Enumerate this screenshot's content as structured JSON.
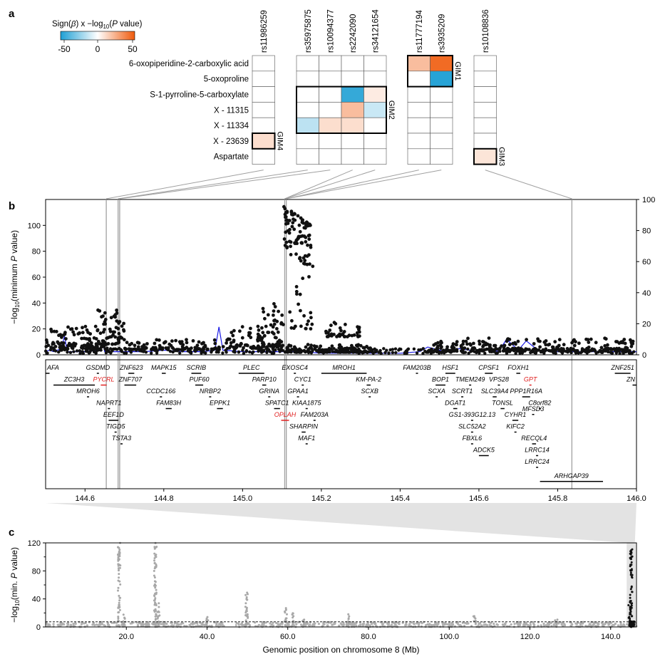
{
  "panels": {
    "a": "a",
    "b": "b",
    "c": "c"
  },
  "colors": {
    "neg": "#1e9fd4",
    "pos": "#ef5a0c",
    "line": "#1a1ae6",
    "gene_hit": "#e02020",
    "dot": "#111111",
    "grey": "#a0a0a0"
  },
  "chart_data": [
    {
      "type": "heatmap",
      "id": "panel-a",
      "colorbar": {
        "title_prefix": "Sign(",
        "beta": "β",
        "title_mid": ") x −log",
        "sub": "10",
        "title_open": "(",
        "p_ital": "P",
        "title_end": " value)",
        "ticks": [
          "-50",
          "0",
          "50"
        ],
        "range": [
          -50,
          50
        ]
      },
      "rows": [
        "6-oxopiperidine-2-carboxylic acid",
        "5-oxoproline",
        "S-1-pyrroline-5-carboxylate",
        "X - 11315",
        "X - 11334",
        "X - 23639",
        "Aspartate"
      ],
      "snp_groups": [
        {
          "snps": [
            "rs11986259"
          ]
        },
        {
          "snps": [
            "rs35975875",
            "rs10094377",
            "rs2242090",
            "rs34121654"
          ]
        },
        {
          "snps": [
            "rs11777194",
            "rs3935209"
          ]
        },
        {
          "snps": [
            "rs10108836"
          ]
        }
      ],
      "cells": [
        {
          "row": 0,
          "group": 2,
          "col": 0,
          "value": 20
        },
        {
          "row": 0,
          "group": 2,
          "col": 1,
          "value": 45
        },
        {
          "row": 1,
          "group": 2,
          "col": 1,
          "value": -48
        },
        {
          "row": 2,
          "group": 1,
          "col": 2,
          "value": -45
        },
        {
          "row": 2,
          "group": 1,
          "col": 3,
          "value": 6
        },
        {
          "row": 3,
          "group": 1,
          "col": 2,
          "value": 20
        },
        {
          "row": 3,
          "group": 1,
          "col": 3,
          "value": -12
        },
        {
          "row": 4,
          "group": 1,
          "col": 0,
          "value": -15
        },
        {
          "row": 4,
          "group": 1,
          "col": 1,
          "value": 10
        },
        {
          "row": 4,
          "group": 1,
          "col": 2,
          "value": 10
        },
        {
          "row": 5,
          "group": 0,
          "col": 0,
          "value": 10
        },
        {
          "row": 6,
          "group": 3,
          "col": 0,
          "value": 8
        }
      ],
      "gims": [
        {
          "label": "GIM1",
          "group": 2,
          "row_start": 0,
          "row_end": 1,
          "col_start": 0,
          "col_end": 1
        },
        {
          "label": "GIM2",
          "group": 1,
          "row_start": 2,
          "row_end": 4,
          "col_start": 0,
          "col_end": 3
        },
        {
          "label": "GIM3",
          "group": 3,
          "row_start": 6,
          "row_end": 6,
          "col_start": 0,
          "col_end": 0
        },
        {
          "label": "GIM4",
          "group": 0,
          "row_start": 5,
          "row_end": 5,
          "col_start": 0,
          "col_end": 0
        }
      ]
    },
    {
      "type": "scatter",
      "id": "panel-b",
      "xlabel": "Genomic position on chromosome 8 (Mb)",
      "ylabel_left": {
        "pre": "−log",
        "sub": "10",
        "post": "(minimum ",
        "p": "P",
        "end": " value)"
      },
      "xlim": [
        144.5,
        146.0
      ],
      "ylim_left": [
        0,
        120
      ],
      "ylim_right": [
        0,
        100
      ],
      "xticks": [
        "144.6",
        "144.8",
        "145.0",
        "145.2",
        "145.4",
        "145.6",
        "145.8",
        "146.0"
      ],
      "yticks_left": [
        "0",
        "20",
        "40",
        "60",
        "80",
        "100"
      ],
      "yticks_right": [
        "0",
        "20",
        "40",
        "60",
        "80",
        "100"
      ],
      "highlight_positions_mb": [
        144.654,
        144.684,
        144.688,
        145.107,
        145.111,
        145.836
      ],
      "dot_clusters": [
        {
          "from": 144.5,
          "to": 144.66,
          "base": 5,
          "peak": 22,
          "n": 110
        },
        {
          "from": 144.63,
          "to": 144.7,
          "base": 8,
          "peak": 35,
          "n": 60
        },
        {
          "from": 144.7,
          "to": 144.95,
          "base": 4,
          "peak": 12,
          "n": 100
        },
        {
          "from": 144.95,
          "to": 145.05,
          "base": 5,
          "peak": 22,
          "n": 60
        },
        {
          "from": 145.05,
          "to": 145.105,
          "base": 6,
          "peak": 42,
          "n": 60
        },
        {
          "from": 145.105,
          "to": 145.175,
          "base": 80,
          "peak": 115,
          "n": 90
        },
        {
          "from": 145.12,
          "to": 145.18,
          "base": 20,
          "peak": 75,
          "n": 25
        },
        {
          "from": 145.21,
          "to": 145.3,
          "base": 14,
          "peak": 26,
          "n": 40
        },
        {
          "from": 145.105,
          "to": 145.33,
          "base": 2,
          "peak": 8,
          "n": 120
        },
        {
          "from": 145.47,
          "to": 145.56,
          "base": 2,
          "peak": 12,
          "n": 50
        },
        {
          "from": 145.55,
          "to": 146.0,
          "base": 3,
          "peak": 13,
          "n": 180
        }
      ],
      "blue_line": {
        "x": [
          144.5,
          144.51,
          144.52,
          144.54,
          144.548,
          144.555,
          144.6,
          144.64,
          144.645,
          144.65,
          144.7,
          144.75,
          144.8,
          144.85,
          144.9,
          144.93,
          144.94,
          144.95,
          145.0,
          145.05,
          145.1,
          145.15,
          145.2,
          145.25,
          145.3,
          145.35,
          145.4,
          145.45,
          145.47,
          145.5,
          145.52,
          145.55,
          145.6,
          145.62,
          145.65,
          145.67,
          145.7,
          145.72,
          145.75,
          145.8,
          145.85,
          145.9,
          145.95,
          146.0
        ],
        "y": [
          2,
          3,
          2,
          4,
          12,
          2,
          2,
          3,
          8,
          2,
          2,
          2,
          3,
          2,
          2,
          3,
          18,
          3,
          2,
          2,
          2,
          2,
          1,
          1,
          1,
          1,
          1,
          2,
          5,
          3,
          2,
          4,
          2,
          4,
          2,
          10,
          3,
          9,
          3,
          2,
          2,
          2,
          2,
          2
        ]
      },
      "genes": [
        {
          "name": "AFA",
          "s": 144.5,
          "e": 144.51,
          "row": 0,
          "anchor": "start"
        },
        {
          "name": "GSDMD",
          "s": 144.63,
          "e": 144.635,
          "row": 0
        },
        {
          "name": "ZNF623",
          "s": 144.71,
          "e": 144.725,
          "row": 0
        },
        {
          "name": "MAPK15",
          "s": 144.795,
          "e": 144.805,
          "row": 0
        },
        {
          "name": "SCRIB",
          "s": 144.87,
          "e": 144.895,
          "row": 0
        },
        {
          "name": "PLEC",
          "s": 144.99,
          "e": 145.055,
          "row": 0
        },
        {
          "name": "EXOSC4",
          "s": 145.13,
          "e": 145.135,
          "row": 0
        },
        {
          "name": "MROH1",
          "s": 145.2,
          "e": 145.315,
          "row": 0
        },
        {
          "name": "FAM203B",
          "s": 145.44,
          "e": 145.445,
          "row": 0
        },
        {
          "name": "HSF1",
          "s": 145.515,
          "e": 145.54,
          "row": 0
        },
        {
          "name": "CPSF1",
          "s": 145.615,
          "e": 145.635,
          "row": 0
        },
        {
          "name": "FOXH1",
          "s": 145.695,
          "e": 145.705,
          "row": 0
        },
        {
          "name": "ZNF251",
          "s": 145.945,
          "e": 145.985,
          "row": 0
        },
        {
          "name": "ZC3H3",
          "s": 144.52,
          "e": 144.625,
          "row": 1
        },
        {
          "name": "PYCRL",
          "s": 144.64,
          "e": 144.655,
          "row": 1,
          "hit": true
        },
        {
          "name": "ZNF707",
          "s": 144.7,
          "e": 144.73,
          "row": 1
        },
        {
          "name": "PUF60",
          "s": 144.88,
          "e": 144.9,
          "row": 1
        },
        {
          "name": "PARP10",
          "s": 145.05,
          "e": 145.06,
          "row": 1
        },
        {
          "name": "CYC1",
          "s": 145.15,
          "e": 145.152,
          "row": 1
        },
        {
          "name": "KM-PA-2",
          "s": 145.315,
          "e": 145.325,
          "row": 1
        },
        {
          "name": "BOP1",
          "s": 145.49,
          "e": 145.515,
          "row": 1
        },
        {
          "name": "TMEM249",
          "s": 145.575,
          "e": 145.58,
          "row": 1
        },
        {
          "name": "VPS28",
          "s": 145.648,
          "e": 145.652,
          "row": 1
        },
        {
          "name": "GPT",
          "s": 145.728,
          "e": 145.733,
          "row": 1,
          "hit": true
        },
        {
          "name": "ZN",
          "s": 145.99,
          "e": 146.0,
          "row": 1,
          "anchor": "end"
        },
        {
          "name": "MROH6",
          "s": 144.605,
          "e": 144.61,
          "row": 2
        },
        {
          "name": "CCDC166",
          "s": 144.79,
          "e": 144.795,
          "row": 2
        },
        {
          "name": "NRBP2",
          "s": 144.915,
          "e": 144.92,
          "row": 2
        },
        {
          "name": "GRINA",
          "s": 145.065,
          "e": 145.067,
          "row": 2
        },
        {
          "name": "GPAA1",
          "s": 145.138,
          "e": 145.142,
          "row": 2
        },
        {
          "name": "SCXB",
          "s": 145.32,
          "e": 145.322,
          "row": 2
        },
        {
          "name": "SCXA",
          "s": 145.49,
          "e": 145.492,
          "row": 2
        },
        {
          "name": "SCRT1",
          "s": 145.555,
          "e": 145.56,
          "row": 2
        },
        {
          "name": "SLC39A4",
          "s": 145.635,
          "e": 145.645,
          "row": 2
        },
        {
          "name": "PPP1R16A",
          "s": 145.71,
          "e": 145.73,
          "row": 2
        },
        {
          "name": "NAPRT1",
          "s": 144.658,
          "e": 144.66,
          "row": 3
        },
        {
          "name": "FAM83H",
          "s": 144.805,
          "e": 144.82,
          "row": 3
        },
        {
          "name": "EPPK1",
          "s": 144.935,
          "e": 144.95,
          "row": 3
        },
        {
          "name": "SPATC1",
          "s": 145.08,
          "e": 145.095,
          "row": 3
        },
        {
          "name": "KIAA1875",
          "s": 145.16,
          "e": 145.165,
          "row": 3
        },
        {
          "name": "DGAT1",
          "s": 145.535,
          "e": 145.545,
          "row": 3
        },
        {
          "name": "TONSL",
          "s": 145.655,
          "e": 145.665,
          "row": 3
        },
        {
          "name": "C8orf82",
          "s": 145.752,
          "e": 145.754,
          "row": 3
        },
        {
          "name": "EEF1D",
          "s": 144.66,
          "e": 144.685,
          "row": 4
        },
        {
          "name": "OPLAH",
          "s": 145.098,
          "e": 145.118,
          "row": 4,
          "hit": true
        },
        {
          "name": "FAM203A",
          "s": 145.18,
          "e": 145.185,
          "row": 4
        },
        {
          "name": "GS1-393G12.13",
          "s": 145.58,
          "e": 145.585,
          "row": 4
        },
        {
          "name": "CYHR1",
          "s": 145.685,
          "e": 145.7,
          "row": 4
        },
        {
          "name": "TIGD5",
          "s": 144.675,
          "e": 144.678,
          "row": 5
        },
        {
          "name": "SHARPIN",
          "s": 145.15,
          "e": 145.16,
          "row": 5
        },
        {
          "name": "SLC52A2",
          "s": 145.58,
          "e": 145.585,
          "row": 5
        },
        {
          "name": "KIFC2",
          "s": 145.69,
          "e": 145.695,
          "row": 5
        },
        {
          "name": "MFSD3",
          "s": 145.735,
          "e": 145.74,
          "row": 3.5
        },
        {
          "name": "TSTA3",
          "s": 144.69,
          "e": 144.695,
          "row": 6
        },
        {
          "name": "MAF1",
          "s": 145.16,
          "e": 145.165,
          "row": 6
        },
        {
          "name": "FBXL6",
          "s": 145.58,
          "e": 145.582,
          "row": 6
        },
        {
          "name": "RECQL4",
          "s": 145.735,
          "e": 145.745,
          "row": 6
        },
        {
          "name": "ADCK5",
          "s": 145.6,
          "e": 145.625,
          "row": 7
        },
        {
          "name": "LRRC14",
          "s": 145.745,
          "e": 145.75,
          "row": 7
        },
        {
          "name": "LRRC24",
          "s": 145.745,
          "e": 145.75,
          "row": 8
        },
        {
          "name": "ARHGAP39",
          "s": 145.755,
          "e": 145.915,
          "row": 9.2
        }
      ]
    },
    {
      "type": "scatter",
      "id": "panel-c",
      "xlabel": "Genomic position on chromosome 8 (Mb)",
      "ylabel": {
        "pre": "−log",
        "sub": "10",
        "post": "(min. ",
        "p": "P",
        "end": " value)"
      },
      "xlim": [
        0,
        146.4
      ],
      "ylim": [
        0,
        120
      ],
      "xticks": [
        "20.0",
        "40.0",
        "60.0",
        "80.0",
        "100.0",
        "120.0",
        "140.0"
      ],
      "yticks": [
        "0",
        "40",
        "80",
        "120"
      ],
      "threshold": 7.3,
      "highlight_region": [
        144.5,
        146.0
      ],
      "gap": [
        44.5,
        47.0
      ],
      "peaks": [
        {
          "x": 18.2,
          "y": 120
        },
        {
          "x": 19.5,
          "y": 18
        },
        {
          "x": 27.2,
          "y": 120
        },
        {
          "x": 28.0,
          "y": 35
        },
        {
          "x": 40.0,
          "y": 17
        },
        {
          "x": 49.8,
          "y": 52
        },
        {
          "x": 59.5,
          "y": 28
        },
        {
          "x": 61.2,
          "y": 20
        },
        {
          "x": 63.8,
          "y": 16
        },
        {
          "x": 75.0,
          "y": 18
        },
        {
          "x": 106.3,
          "y": 16
        },
        {
          "x": 126.5,
          "y": 12
        },
        {
          "x": 145.1,
          "y": 115
        },
        {
          "x": 144.7,
          "y": 40
        }
      ]
    }
  ]
}
